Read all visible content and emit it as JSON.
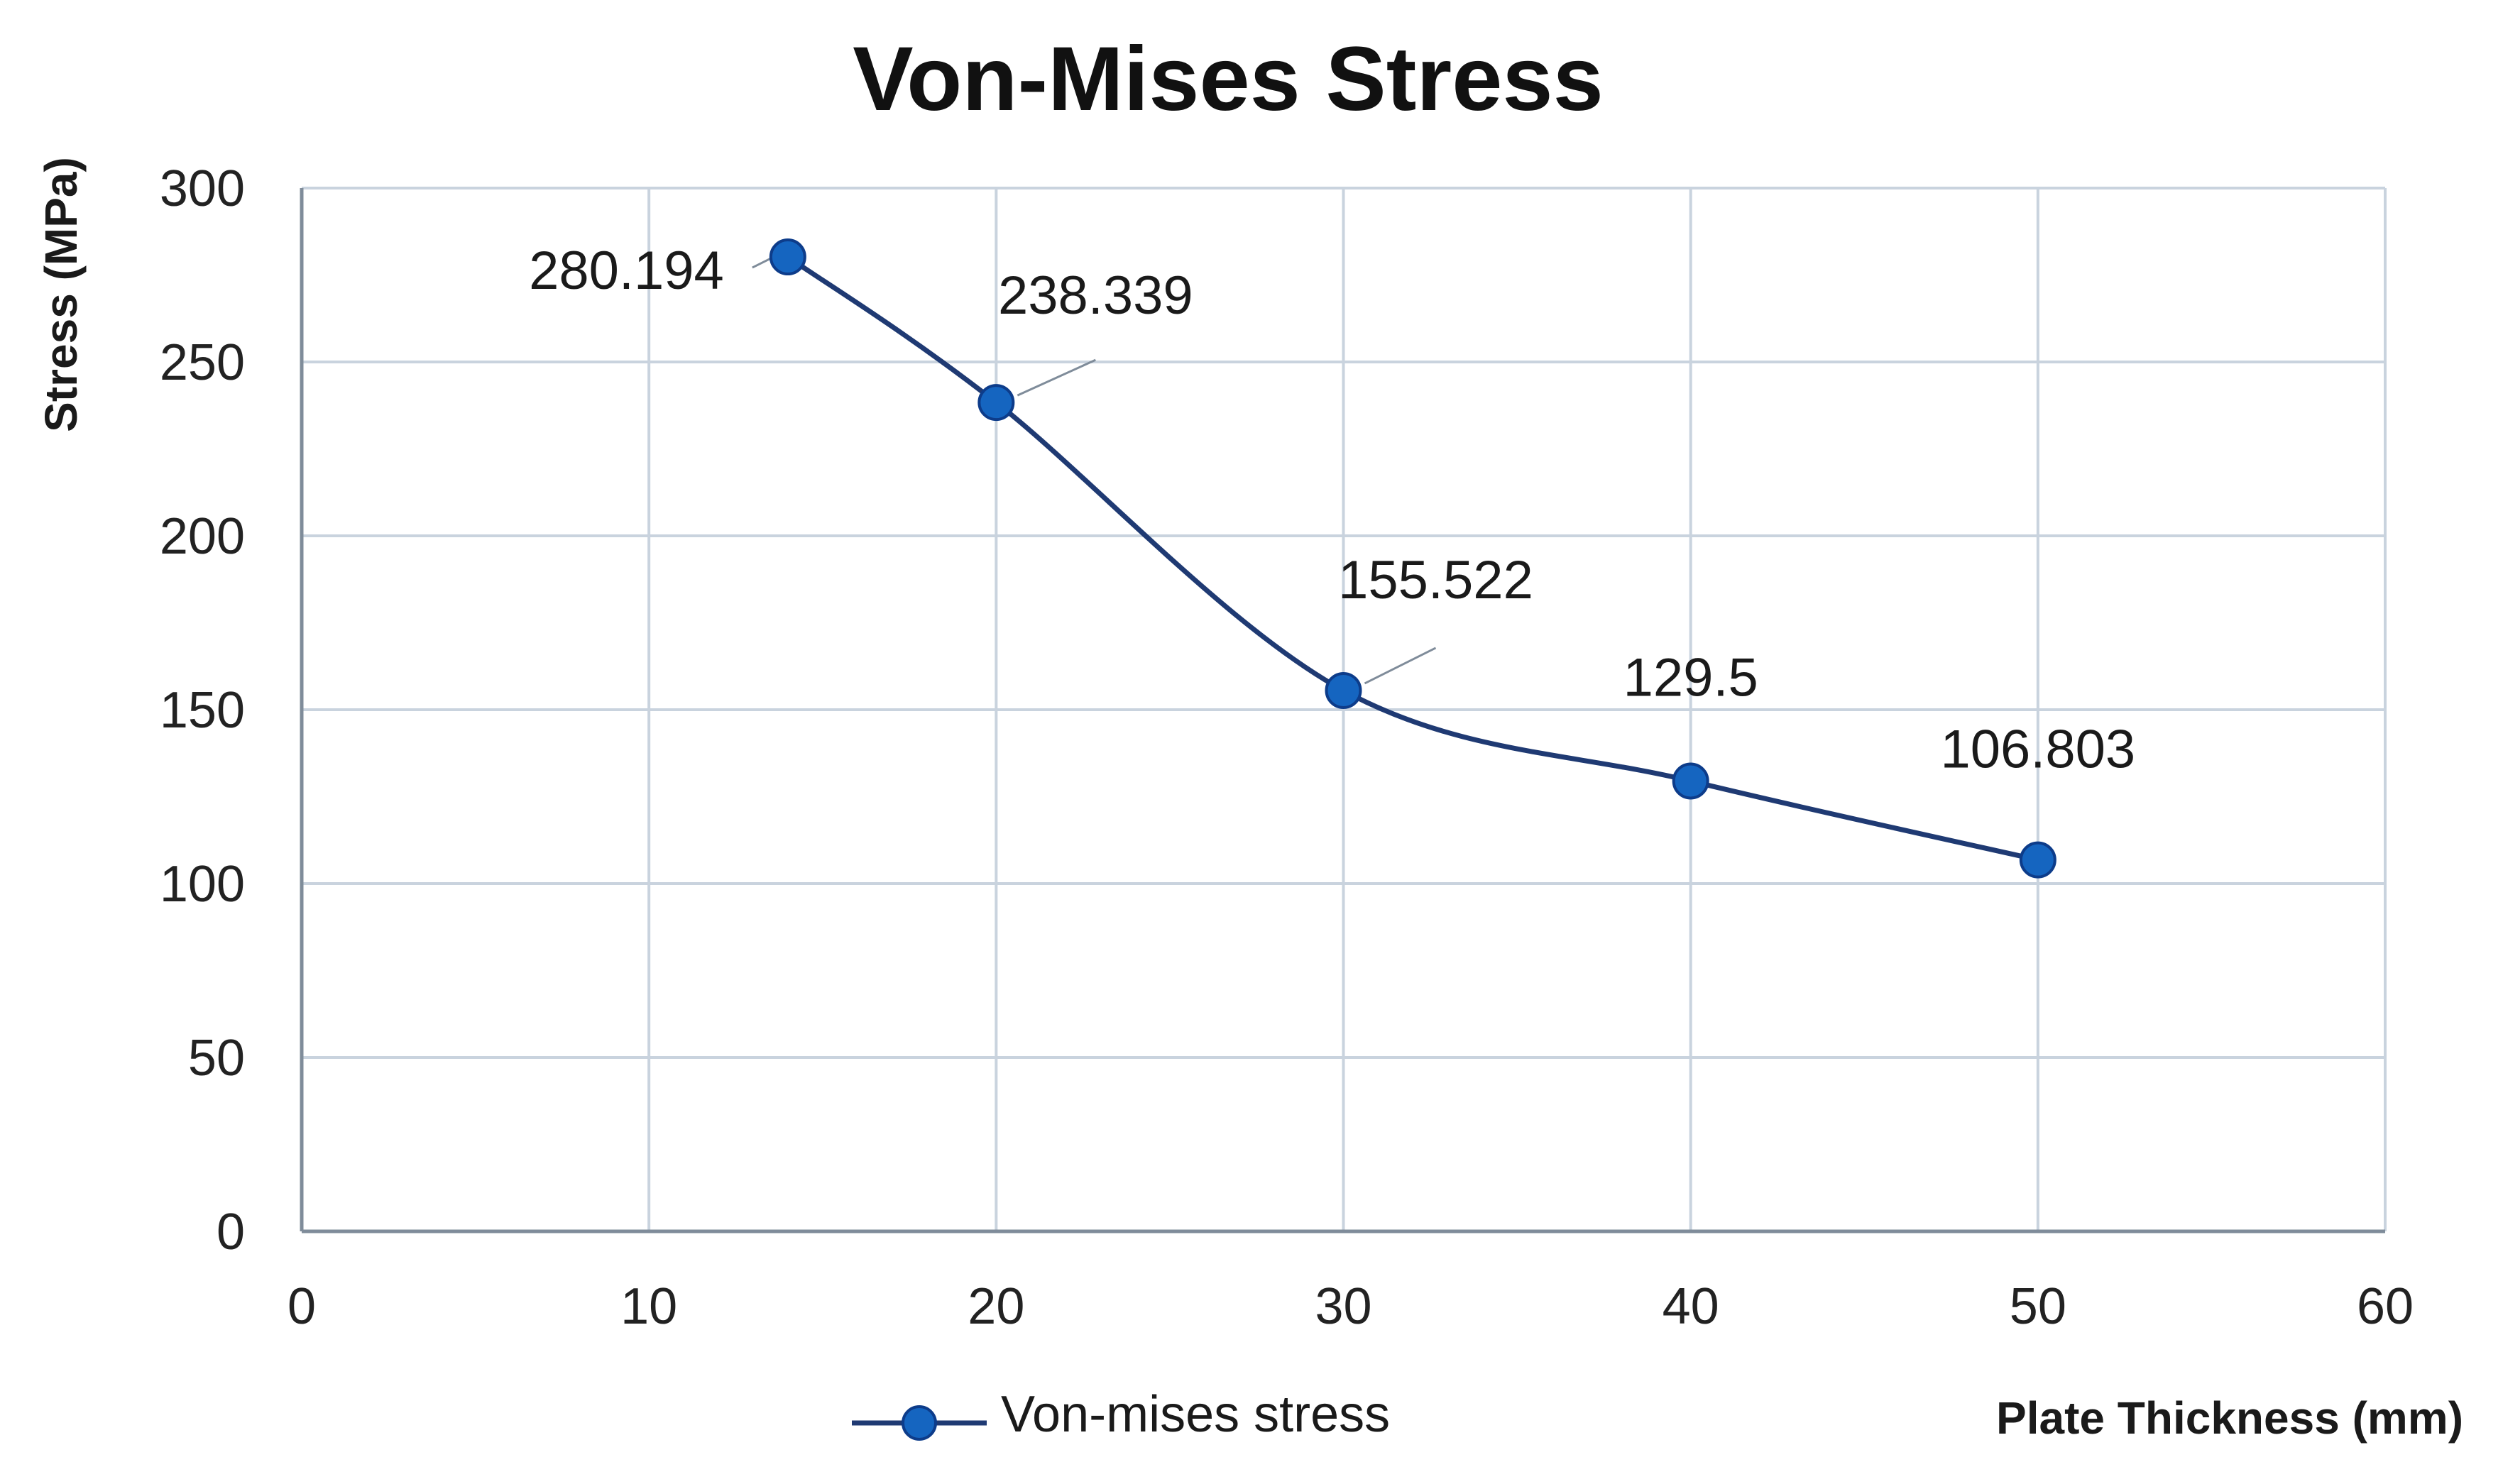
{
  "chart_data": {
    "type": "line",
    "title": "Von-Mises Stress",
    "xlabel": "Plate Thickness (mm)",
    "ylabel": "Stress (MPa)",
    "xlim": [
      0,
      60
    ],
    "ylim": [
      0,
      300
    ],
    "x_ticks": [
      0,
      10,
      20,
      30,
      40,
      50,
      60
    ],
    "y_ticks": [
      0,
      50,
      100,
      150,
      200,
      250,
      300
    ],
    "grid": true,
    "smooth": true,
    "legend_position": "bottom",
    "series": [
      {
        "name": "Von-mises stress",
        "color": "#1f3a73",
        "marker_color": "#1565c0",
        "x": [
          14,
          20,
          30,
          40,
          50
        ],
        "y": [
          280.194,
          238.339,
          155.522,
          129.5,
          106.803
        ],
        "data_labels": [
          "280.194",
          "238.339",
          "155.522",
          "129.5",
          "106.803"
        ]
      }
    ]
  }
}
